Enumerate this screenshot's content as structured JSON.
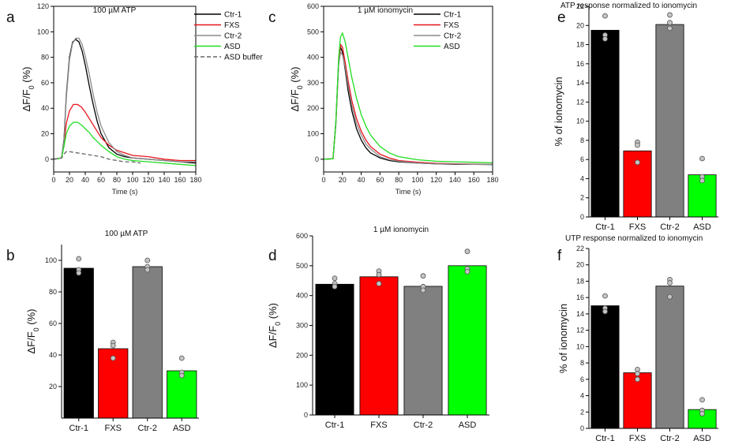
{
  "chart_data": [
    {
      "panel": "a",
      "type": "line",
      "title": "100 µM ATP",
      "xlabel": "Time (s)",
      "ylabel": "ΔF/F0 (%)",
      "xlim": [
        0,
        180
      ],
      "ylim": [
        -10,
        120
      ],
      "xticks": [
        0,
        20,
        40,
        60,
        80,
        100,
        120,
        140,
        160,
        180
      ],
      "yticks": [
        0,
        20,
        40,
        60,
        80,
        100,
        120
      ],
      "legend": "top-right",
      "series": [
        {
          "name": "Ctr-1",
          "color": "#000000",
          "dash": "",
          "x": [
            0,
            10,
            13,
            16,
            20,
            24,
            28,
            32,
            36,
            40,
            45,
            50,
            55,
            60,
            70,
            80,
            90,
            100,
            120,
            140,
            160,
            180
          ],
          "y": [
            0,
            1,
            15,
            50,
            80,
            92,
            94,
            92,
            85,
            74,
            58,
            43,
            30,
            20,
            9,
            4,
            2,
            1,
            0,
            -1,
            -2,
            -3
          ]
        },
        {
          "name": "FXS",
          "color": "#e8141c",
          "dash": "",
          "x": [
            0,
            10,
            13,
            16,
            20,
            25,
            30,
            35,
            40,
            45,
            50,
            55,
            60,
            70,
            80,
            90,
            100,
            120,
            140,
            160,
            180
          ],
          "y": [
            0,
            1,
            12,
            28,
            38,
            43,
            43,
            41,
            37,
            32,
            27,
            22,
            17,
            11,
            7,
            5,
            3,
            2,
            0,
            -1,
            -1
          ]
        },
        {
          "name": "Ctr-2",
          "color": "#8a8a8a",
          "dash": "",
          "x": [
            0,
            10,
            13,
            16,
            20,
            24,
            28,
            32,
            36,
            40,
            45,
            50,
            55,
            60,
            70,
            80,
            90,
            100,
            120,
            140,
            160,
            180
          ],
          "y": [
            0,
            1,
            14,
            48,
            78,
            91,
            95,
            95,
            90,
            81,
            67,
            51,
            37,
            26,
            13,
            6,
            3,
            1,
            0,
            -1,
            -2,
            -2
          ]
        },
        {
          "name": "ASD",
          "color": "#22dd22",
          "dash": "",
          "x": [
            0,
            10,
            13,
            16,
            20,
            25,
            30,
            35,
            40,
            45,
            50,
            55,
            60,
            70,
            80,
            90,
            100,
            120,
            140,
            160,
            180
          ],
          "y": [
            0,
            1,
            10,
            20,
            26,
            29,
            29,
            27,
            24,
            21,
            17,
            14,
            11,
            6,
            2,
            0,
            -1,
            -2,
            -3,
            -4,
            -5
          ]
        },
        {
          "name": "ASD buffer",
          "color": "#666666",
          "dash": "5,3",
          "x": [
            0,
            10,
            13,
            16,
            20,
            30,
            40,
            50,
            60,
            70,
            80,
            90,
            100,
            110
          ],
          "y": [
            0,
            1,
            4,
            6,
            6,
            5,
            4,
            3,
            2,
            0,
            -1,
            -2,
            -2,
            -3
          ]
        }
      ]
    },
    {
      "panel": "c",
      "type": "line",
      "title": "1 µM ionomycin",
      "xlabel": "Time (s)",
      "ylabel": "ΔF/F0 (%)",
      "xlim": [
        0,
        180
      ],
      "ylim": [
        -50,
        600
      ],
      "xticks": [
        0,
        20,
        40,
        60,
        80,
        100,
        120,
        140,
        160,
        180
      ],
      "yticks": [
        0,
        100,
        200,
        300,
        400,
        500,
        600
      ],
      "legend": "top-right",
      "series": [
        {
          "name": "Ctr-1",
          "color": "#000000",
          "dash": "",
          "x": [
            0,
            10,
            13,
            16,
            18,
            20,
            23,
            26,
            30,
            35,
            40,
            45,
            50,
            60,
            70,
            80,
            100,
            120,
            140,
            160,
            180
          ],
          "y": [
            0,
            2,
            150,
            380,
            440,
            420,
            350,
            270,
            190,
            120,
            75,
            45,
            25,
            5,
            -5,
            -10,
            -15,
            -18,
            -20,
            -20,
            -21
          ]
        },
        {
          "name": "FXS",
          "color": "#e8141c",
          "dash": "",
          "x": [
            0,
            10,
            13,
            16,
            18,
            20,
            23,
            26,
            30,
            35,
            40,
            45,
            50,
            60,
            70,
            80,
            100,
            120,
            140,
            160,
            180
          ],
          "y": [
            0,
            2,
            140,
            380,
            450,
            440,
            380,
            310,
            230,
            160,
            110,
            75,
            50,
            20,
            5,
            -5,
            -12,
            -16,
            -18,
            -19,
            -20
          ]
        },
        {
          "name": "Ctr-2",
          "color": "#8a8a8a",
          "dash": "",
          "x": [
            0,
            10,
            13,
            16,
            18,
            20,
            23,
            26,
            30,
            35,
            40,
            45,
            50,
            60,
            70,
            80,
            100,
            120,
            140,
            160,
            180
          ],
          "y": [
            0,
            2,
            140,
            370,
            420,
            410,
            360,
            290,
            210,
            140,
            95,
            60,
            40,
            10,
            -2,
            -8,
            -15,
            -18,
            -19,
            -20,
            -20
          ]
        },
        {
          "name": "ASD",
          "color": "#22dd22",
          "dash": "",
          "x": [
            0,
            10,
            13,
            16,
            18,
            20,
            23,
            26,
            30,
            35,
            40,
            45,
            50,
            60,
            70,
            80,
            100,
            120,
            140,
            160,
            180
          ],
          "y": [
            0,
            2,
            150,
            400,
            480,
            495,
            460,
            400,
            320,
            240,
            175,
            130,
            95,
            50,
            25,
            10,
            -2,
            -8,
            -10,
            -12,
            -14
          ]
        }
      ]
    },
    {
      "panel": "e",
      "type": "bar",
      "title": "ATP response normalized to ionomycin",
      "xlabel": "",
      "ylabel": "% of ionomycin",
      "ylim": [
        0,
        22
      ],
      "yticks": [
        0,
        2,
        4,
        6,
        8,
        10,
        12,
        14,
        16,
        18,
        20,
        22
      ],
      "categories": [
        "Ctr-1",
        "FXS",
        "Ctr-2",
        "ASD"
      ],
      "colors": [
        "#000000",
        "#ff0000",
        "#808080",
        "#00ff00"
      ],
      "values": [
        19.5,
        6.9,
        20.1,
        4.4
      ],
      "points": [
        [
          21.0,
          19.0,
          18.6
        ],
        [
          7.8,
          7.5,
          5.7
        ],
        [
          21.1,
          20.3,
          19.7
        ],
        [
          6.1,
          4.2,
          3.8
        ]
      ]
    },
    {
      "panel": "b",
      "type": "bar",
      "title": "100 µM ATP",
      "xlabel": "",
      "ylabel": "ΔF/F0 (%)",
      "ylim": [
        0,
        110
      ],
      "yticks": [
        20,
        40,
        60,
        80,
        100
      ],
      "categories": [
        "Ctr-1",
        "FXS",
        "Ctr-2",
        "ASD"
      ],
      "colors": [
        "#000000",
        "#ff0000",
        "#808080",
        "#00ff00"
      ],
      "values": [
        95,
        44,
        96,
        30
      ],
      "points": [
        [
          101,
          94,
          92
        ],
        [
          48,
          46,
          38
        ],
        [
          100,
          96,
          94
        ],
        [
          38,
          29,
          27
        ]
      ]
    },
    {
      "panel": "d",
      "type": "bar",
      "title": "1 µM ionomycin",
      "xlabel": "",
      "ylabel": "ΔF/F0 (%)",
      "ylim": [
        0,
        600
      ],
      "yticks": [
        0,
        100,
        200,
        300,
        400,
        500,
        600
      ],
      "categories": [
        "Ctr-1",
        "FXS",
        "Ctr-2",
        "ASD"
      ],
      "colors": [
        "#000000",
        "#ff0000",
        "#808080",
        "#00ff00"
      ],
      "values": [
        438,
        463,
        431,
        500
      ],
      "points": [
        [
          458,
          440,
          430
        ],
        [
          482,
          470,
          440
        ],
        [
          466,
          430,
          418
        ],
        [
          548,
          490,
          480
        ]
      ]
    },
    {
      "panel": "f",
      "type": "bar",
      "title": "UTP response normalized to ionomycin",
      "xlabel": "",
      "ylabel": "% of ionomycin",
      "ylim": [
        0,
        22
      ],
      "yticks": [
        0,
        2,
        4,
        6,
        8,
        10,
        12,
        14,
        16,
        18,
        20,
        22
      ],
      "categories": [
        "Ctr-1",
        "FXS",
        "Ctr-2",
        "ASD"
      ],
      "colors": [
        "#000000",
        "#ff0000",
        "#808080",
        "#00ff00"
      ],
      "values": [
        15.0,
        6.8,
        17.4,
        2.3
      ],
      "points": [
        [
          16.2,
          14.7,
          14.3
        ],
        [
          7.2,
          6.7,
          6.0
        ],
        [
          18.2,
          17.8,
          16.1
        ],
        [
          3.5,
          2.2,
          1.8
        ]
      ]
    }
  ]
}
